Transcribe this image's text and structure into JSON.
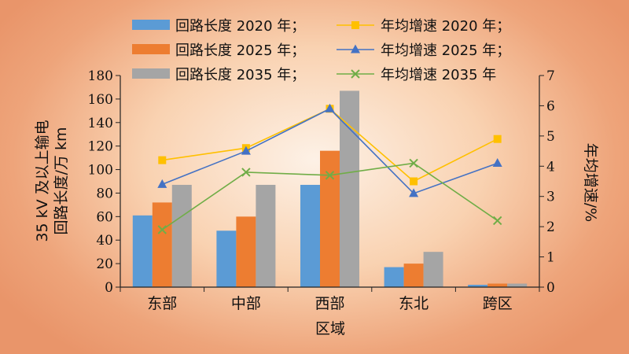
{
  "chart_data": {
    "type": "bar",
    "categories": [
      "东部",
      "中部",
      "西部",
      "东北",
      "跨区"
    ],
    "xlabel": "区域",
    "ylabel_lines": [
      "35 kV 及以上输电",
      "回路长度/万 km"
    ],
    "y2label": "年均增速/%",
    "ylim": [
      0,
      180
    ],
    "y_ticks": [
      0,
      20,
      40,
      60,
      80,
      100,
      120,
      140,
      160,
      180
    ],
    "y2lim": [
      0,
      7
    ],
    "y2_ticks": [
      0,
      1,
      2,
      3,
      4,
      5,
      6,
      7
    ],
    "legend_placement": "top",
    "bar_series": [
      {
        "name": "回路长度 2020 年；",
        "color": "#5b9bd5",
        "values": [
          61,
          48,
          87,
          17,
          2
        ]
      },
      {
        "name": "回路长度 2025 年；",
        "color": "#ed7d31",
        "values": [
          72,
          60,
          116,
          20,
          3
        ]
      },
      {
        "name": "回路长度 2035 年；",
        "color": "#a5a5a5",
        "values": [
          87,
          87,
          167,
          30,
          3
        ]
      }
    ],
    "line_series": [
      {
        "name": "年均增速 2020 年；",
        "color": "#ffc000",
        "marker": "square",
        "values": [
          4.2,
          4.6,
          5.9,
          3.5,
          4.9
        ]
      },
      {
        "name": "年均增速 2025 年；",
        "color": "#4472c4",
        "marker": "triangle",
        "values": [
          3.4,
          4.5,
          5.9,
          3.1,
          4.1
        ]
      },
      {
        "name": "年均增速 2035 年",
        "color": "#70ad47",
        "marker": "x",
        "values": [
          1.9,
          3.8,
          3.7,
          4.1,
          2.2
        ]
      }
    ]
  }
}
